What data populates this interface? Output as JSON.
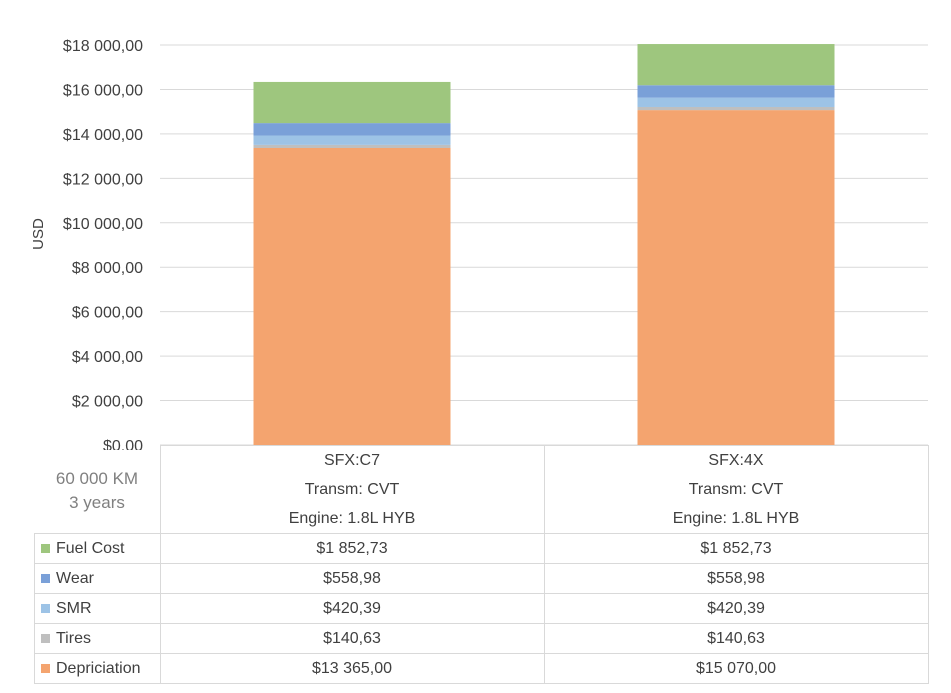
{
  "chart_data": {
    "type": "bar",
    "stacked": true,
    "ylabel": "USD",
    "ylim": [
      0,
      18000
    ],
    "y_ticks": [
      "$0,00",
      "$2 000,00",
      "$4 000,00",
      "$6 000,00",
      "$8 000,00",
      "$10 000,00",
      "$12 000,00",
      "$14 000,00",
      "$16 000,00",
      "$18 000,00"
    ],
    "grid": true,
    "corner_label": [
      "60 000 KM",
      "3 years"
    ],
    "categories": [
      [
        "SFX:C7",
        "Transm: CVT",
        "Engine: 1.8L HYB"
      ],
      [
        "SFX:4X",
        "Transm: CVT",
        "Engine: 1.8L HYB"
      ]
    ],
    "series": [
      {
        "name": "Depriciation",
        "color": "#f4a46f",
        "values": [
          13365.0,
          15070.0
        ],
        "labels": [
          "$13 365,00",
          "$15 070,00"
        ]
      },
      {
        "name": "Tires",
        "color": "#bfbfbf",
        "values": [
          140.63,
          140.63
        ],
        "labels": [
          "$140,63",
          "$140,63"
        ]
      },
      {
        "name": "SMR",
        "color": "#9dc3e6",
        "values": [
          420.39,
          420.39
        ],
        "labels": [
          "$420,39",
          "$420,39"
        ]
      },
      {
        "name": "Wear",
        "color": "#7aa0d8",
        "values": [
          558.98,
          558.98
        ],
        "labels": [
          "$558,98",
          "$558,98"
        ]
      },
      {
        "name": "Fuel Cost",
        "color": "#9ec67e",
        "values": [
          1852.73,
          1852.73
        ],
        "labels": [
          "$1 852,73",
          "$1 852,73"
        ]
      }
    ],
    "table_row_order": [
      "Fuel Cost",
      "Wear",
      "SMR",
      "Tires",
      "Depriciation"
    ]
  }
}
